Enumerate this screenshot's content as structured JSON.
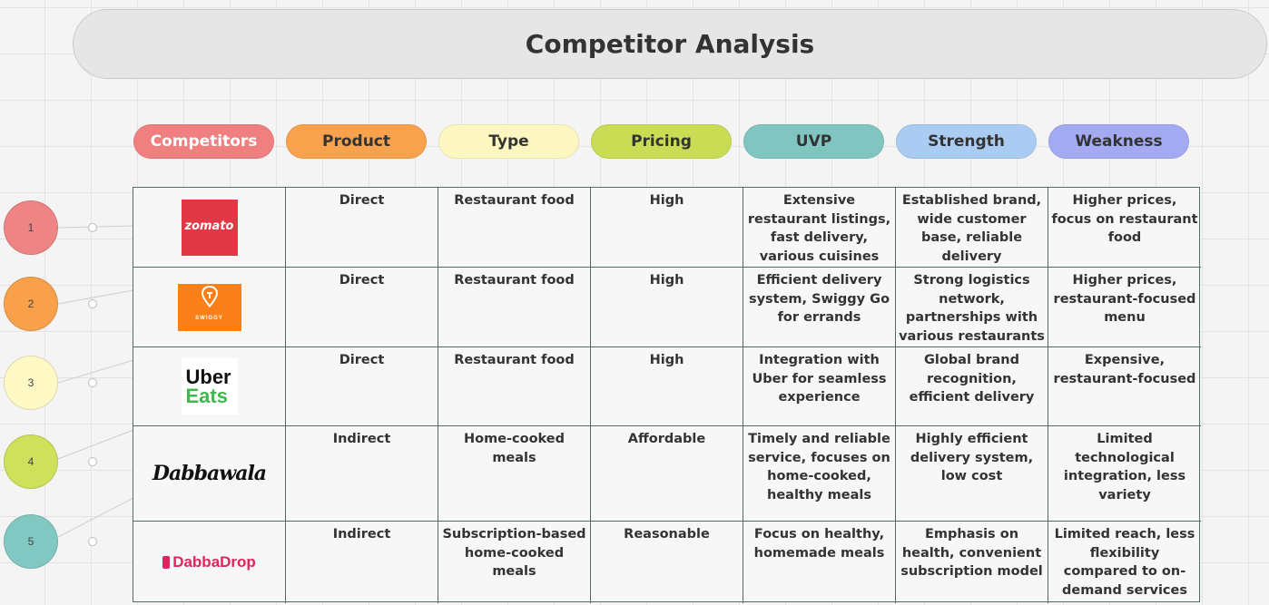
{
  "title": "Competitor Analysis",
  "headers": [
    {
      "label": "Competitors",
      "color": "#f08080",
      "text_color": "#ffffff"
    },
    {
      "label": "Product",
      "color": "#f9a24d",
      "text_color": "#333333"
    },
    {
      "label": "Type",
      "color": "#fdf6c0",
      "text_color": "#333333"
    },
    {
      "label": "Pricing",
      "color": "#c9dc54",
      "text_color": "#333333"
    },
    {
      "label": "UVP",
      "color": "#80c5c0",
      "text_color": "#333333"
    },
    {
      "label": "Strength",
      "color": "#abccf2",
      "text_color": "#333333"
    },
    {
      "label": "Weakness",
      "color": "#a3aaf2",
      "text_color": "#333333"
    }
  ],
  "rows": [
    {
      "logo": "zomato",
      "logo_text": "zomato",
      "product": "Direct",
      "type": "Restaurant food",
      "pricing": "High",
      "uvp": "Extensive restaurant listings, fast delivery, various cuisines",
      "strength": "Established brand, wide customer base, reliable delivery",
      "weakness": "Higher prices, focus on restaurant food"
    },
    {
      "logo": "swiggy",
      "logo_text": "SWIGGY",
      "product": "Direct",
      "type": "Restaurant food",
      "pricing": "High",
      "uvp": "Efficient delivery system, Swiggy Go for errands",
      "strength": "Strong logistics network, partnerships with various restaurants",
      "weakness": "Higher prices, restaurant-focused menu"
    },
    {
      "logo": "uber-eats",
      "logo_text": "Uber",
      "logo_text_2": "Eats",
      "product": "Direct",
      "type": "Restaurant food",
      "pricing": "High",
      "uvp": "Integration with Uber for seamless experience",
      "strength": "Global brand recognition, efficient delivery",
      "weakness": "Expensive, restaurant-focused"
    },
    {
      "logo": "dabbawala",
      "logo_text": "Dabbawala",
      "product": "Indirect",
      "type": "Home-cooked meals",
      "pricing": "Affordable",
      "uvp": "Timely and reliable service, focuses on home-cooked, healthy meals",
      "strength": "Highly efficient delivery system, low cost",
      "weakness": "Limited technological integration, less variety"
    },
    {
      "logo": "dabbadrop",
      "logo_text": "DabbaDrop",
      "product": "Indirect",
      "type": "Subscription-based home-cooked meals",
      "pricing": "Reasonable",
      "uvp": "Focus on healthy, homemade meals",
      "strength": "Emphasis on health, convenient subscription model",
      "weakness": "Limited reach, less flexibility compared to on-demand services"
    }
  ],
  "nodes": [
    {
      "label": "1",
      "color": "#ef8484"
    },
    {
      "label": "2",
      "color": "#f9a04a"
    },
    {
      "label": "3",
      "color": "#fdf8c4"
    },
    {
      "label": "4",
      "color": "#cfe05a"
    },
    {
      "label": "5",
      "color": "#82c8c2"
    }
  ]
}
